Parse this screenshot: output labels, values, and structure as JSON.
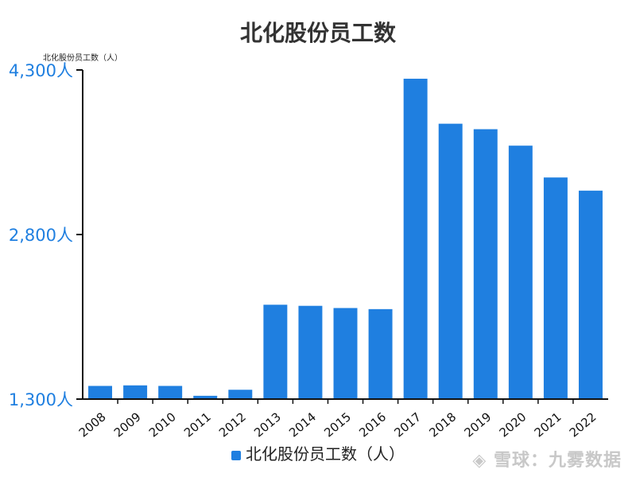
{
  "chart_data": {
    "type": "bar",
    "title": "北化股份员工数",
    "ylabel": "北化股份员工数（人）",
    "xlabel": "",
    "categories": [
      "2008",
      "2009",
      "2010",
      "2011",
      "2012",
      "2013",
      "2014",
      "2015",
      "2016",
      "2017",
      "2018",
      "2019",
      "2020",
      "2021",
      "2022"
    ],
    "series": [
      {
        "name": "北化股份员工数（人）",
        "values": [
          1420,
          1425,
          1420,
          1330,
          1385,
          2160,
          2150,
          2130,
          2120,
          4220,
          3810,
          3760,
          3610,
          3320,
          3200
        ]
      }
    ],
    "ylim": [
      1300,
      4300
    ],
    "yticks": [
      "1,300人",
      "2,800人",
      "4,300人"
    ],
    "ytick_values": [
      1300,
      2800,
      4300
    ],
    "legend": "bottom",
    "bar_color": "#1f7fe0",
    "grid": false
  },
  "watermark": "雪球：九雾数据"
}
